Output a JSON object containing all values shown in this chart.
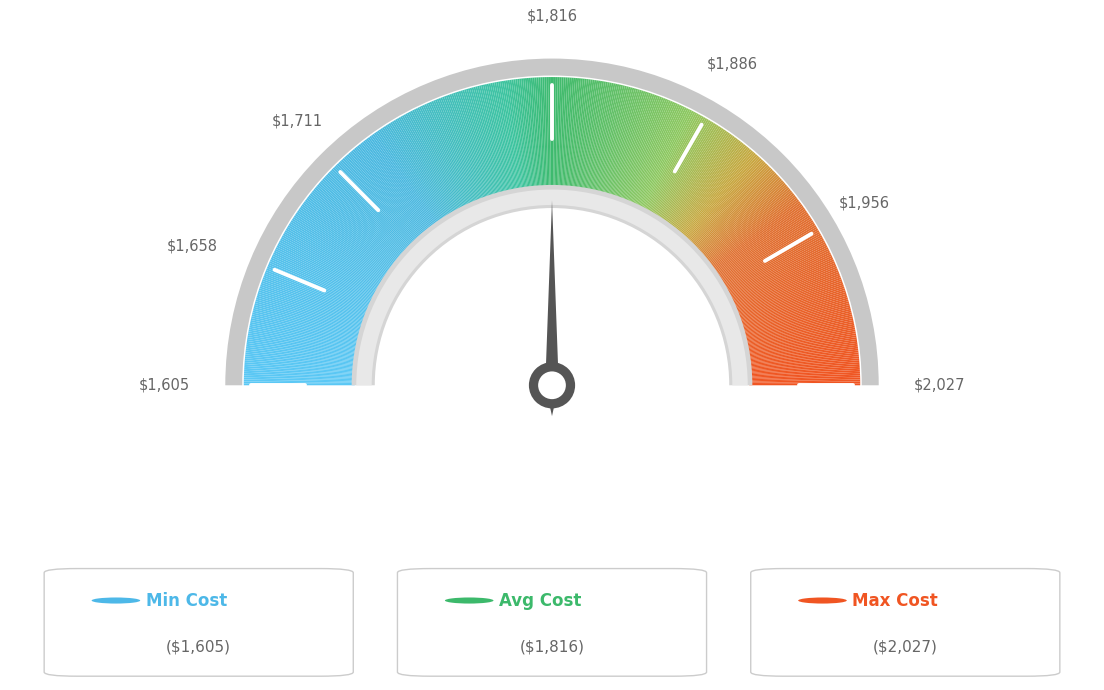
{
  "min_val": 1605,
  "max_val": 2027,
  "avg_val": 1816,
  "needle_value": 1816,
  "tick_values": [
    1605,
    1658,
    1711,
    1816,
    1886,
    1956,
    2027
  ],
  "tick_labels": [
    "$1,605",
    "$1,658",
    "$1,711",
    "$1,816",
    "$1,886",
    "$1,956",
    "$2,027"
  ],
  "legend": [
    {
      "label": "Min Cost",
      "sublabel": "($1,605)",
      "color": "#4db8e8"
    },
    {
      "label": "Avg Cost",
      "sublabel": "($1,816)",
      "color": "#3cb96b"
    },
    {
      "label": "Max Cost",
      "sublabel": "($2,027)",
      "color": "#f05522"
    }
  ],
  "background_color": "#ffffff",
  "gauge_outer_r": 1.0,
  "gauge_inner_r": 0.64,
  "gauge_ring_outer_r": 1.06,
  "gauge_ring_inner_r": 0.6,
  "color_stops": [
    [
      0.0,
      "#5bc8f5"
    ],
    [
      0.3,
      "#4ab8e0"
    ],
    [
      0.45,
      "#3ec4a0"
    ],
    [
      0.5,
      "#3dba6e"
    ],
    [
      0.65,
      "#8ec860"
    ],
    [
      0.73,
      "#c8a840"
    ],
    [
      0.8,
      "#e07030"
    ],
    [
      1.0,
      "#f05522"
    ]
  ]
}
